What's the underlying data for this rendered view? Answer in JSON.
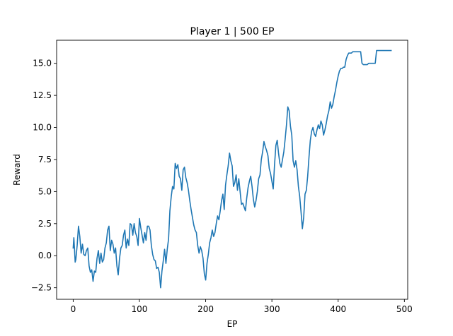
{
  "chart_data": {
    "type": "line",
    "title": "Player 1 | 500 EP",
    "xlabel": "EP",
    "ylabel": "Reward",
    "xlim": [
      -25,
      505
    ],
    "ylim": [
      -3.4,
      16.8
    ],
    "xticks": [
      0,
      100,
      200,
      300,
      400,
      500
    ],
    "xtick_labels": [
      "0",
      "100",
      "200",
      "300",
      "400",
      "500"
    ],
    "yticks": [
      -2.5,
      0.0,
      2.5,
      5.0,
      7.5,
      10.0,
      12.5,
      15.0
    ],
    "ytick_labels": [
      "−2.5",
      "0.0",
      "2.5",
      "5.0",
      "7.5",
      "10.0",
      "12.5",
      "15.0"
    ],
    "grid": false,
    "color": "#1f77b4",
    "series": [
      {
        "x": [
          0,
          1,
          2,
          3,
          4,
          6,
          8,
          10,
          12,
          14,
          16,
          18,
          20,
          22,
          24,
          26,
          28,
          30,
          32,
          34,
          36,
          38,
          40,
          42,
          44,
          46,
          48,
          50,
          52,
          54,
          56,
          58,
          60,
          62,
          64,
          66,
          68,
          70,
          72,
          74,
          76,
          78,
          80,
          82,
          84,
          86,
          88,
          90,
          92,
          94,
          96,
          98,
          100,
          102,
          104,
          106,
          108,
          110,
          112,
          114,
          116,
          118,
          120,
          122,
          124,
          126,
          128,
          130,
          132,
          134,
          136,
          138,
          140,
          142,
          144,
          146,
          148,
          150,
          152,
          154,
          156,
          158,
          160,
          162,
          164,
          166,
          168,
          170,
          172,
          174,
          176,
          178,
          180,
          182,
          184,
          186,
          188,
          190,
          192,
          194,
          196,
          198,
          200,
          202,
          204,
          206,
          208,
          210,
          212,
          214,
          216,
          218,
          220,
          222,
          224,
          226,
          228,
          230,
          232,
          234,
          236,
          238,
          240,
          242,
          244,
          246,
          248,
          250,
          252,
          254,
          256,
          258,
          260,
          262,
          264,
          266,
          268,
          270,
          272,
          274,
          276,
          278,
          280,
          282,
          284,
          286,
          288,
          290,
          292,
          294,
          296,
          298,
          300,
          302,
          304,
          306,
          308,
          310,
          312,
          314,
          316,
          318,
          320,
          322,
          324,
          326,
          328,
          330,
          332,
          334,
          336,
          338,
          340,
          342,
          344,
          346,
          348,
          350,
          352,
          354,
          356,
          358,
          360,
          362,
          364,
          366,
          368,
          370,
          372,
          374,
          376,
          378,
          380,
          382,
          384,
          386,
          388,
          390,
          392,
          394,
          396,
          398,
          400,
          402,
          404,
          406,
          408,
          410,
          412,
          414,
          416,
          418,
          420,
          422,
          424,
          426,
          428,
          430,
          432,
          434,
          436,
          438,
          440,
          442,
          444,
          446,
          448,
          450,
          452,
          454,
          456,
          458,
          460,
          462,
          464,
          466,
          468,
          470,
          472,
          474,
          476,
          478,
          480
        ],
        "y": [
          0.6,
          1.4,
          0.5,
          -0.5,
          -0.3,
          0.8,
          2.3,
          1.5,
          0.2,
          0.9,
          0.1,
          0.0,
          0.4,
          0.6,
          -0.8,
          -1.3,
          -1.1,
          -2.0,
          -1.2,
          -1.3,
          -0.2,
          0.4,
          -0.6,
          0.2,
          -0.5,
          -0.3,
          0.6,
          1.0,
          2.0,
          2.3,
          0.4,
          1.2,
          0.9,
          0.2,
          0.6,
          -0.8,
          -1.5,
          -0.2,
          0.6,
          0.8,
          1.6,
          2.0,
          0.6,
          1.3,
          0.8,
          2.5,
          2.4,
          1.6,
          2.5,
          1.8,
          1.5,
          0.8,
          2.9,
          2.2,
          1.6,
          1.0,
          1.8,
          1.2,
          2.3,
          2.3,
          2.0,
          0.8,
          0.1,
          -0.3,
          -0.4,
          -1.0,
          -0.9,
          -1.3,
          -2.5,
          -1.2,
          -0.4,
          0.5,
          -0.6,
          0.5,
          1.3,
          3.5,
          4.6,
          5.4,
          5.2,
          7.2,
          6.8,
          7.1,
          6.2,
          6.0,
          5.1,
          6.7,
          6.9,
          6.1,
          5.7,
          5.1,
          4.3,
          3.6,
          3.0,
          2.4,
          2.0,
          1.8,
          0.8,
          0.2,
          0.7,
          0.4,
          -0.2,
          -1.4,
          -1.9,
          -0.6,
          0.1,
          1.0,
          1.4,
          2.0,
          1.5,
          1.8,
          2.5,
          3.1,
          2.8,
          3.5,
          4.3,
          4.8,
          3.6,
          5.5,
          6.3,
          7.0,
          8.0,
          7.4,
          7.0,
          5.4,
          5.7,
          6.3,
          5.1,
          6.0,
          5.0,
          4.0,
          4.1,
          3.8,
          3.5,
          4.5,
          5.3,
          5.8,
          6.2,
          5.4,
          4.4,
          3.8,
          4.3,
          5.0,
          6.0,
          6.3,
          7.5,
          8.1,
          8.9,
          8.5,
          8.2,
          7.8,
          6.8,
          6.4,
          5.8,
          5.2,
          7.1,
          8.6,
          9.0,
          8.0,
          7.2,
          6.9,
          7.5,
          8.1,
          9.1,
          10.2,
          11.6,
          11.3,
          10.1,
          9.4,
          7.4,
          6.9,
          7.4,
          6.7,
          5.4,
          4.6,
          3.4,
          2.1,
          3.0,
          4.8,
          5.1,
          6.2,
          7.7,
          9.0,
          9.7,
          10.0,
          9.5,
          9.3,
          9.8,
          10.2,
          9.9,
          10.5,
          10.2,
          9.4,
          9.8,
          10.3,
          10.9,
          11.3,
          12.0,
          11.5,
          11.8,
          12.4,
          12.9,
          13.5,
          14.0,
          14.4,
          14.6,
          14.6,
          14.7,
          14.7,
          15.3,
          15.6,
          15.8,
          15.8,
          15.8,
          15.9,
          15.9,
          15.9,
          15.9,
          15.9,
          15.9,
          15.9,
          15.0,
          14.9,
          14.9,
          14.9,
          14.9,
          15.0,
          15.0,
          15.0,
          15.0,
          15.0,
          15.0,
          16.0,
          16.0,
          16.0,
          16.0,
          16.0,
          16.0,
          16.0,
          16.0,
          16.0,
          16.0,
          16.0,
          16.0
        ]
      }
    ]
  }
}
